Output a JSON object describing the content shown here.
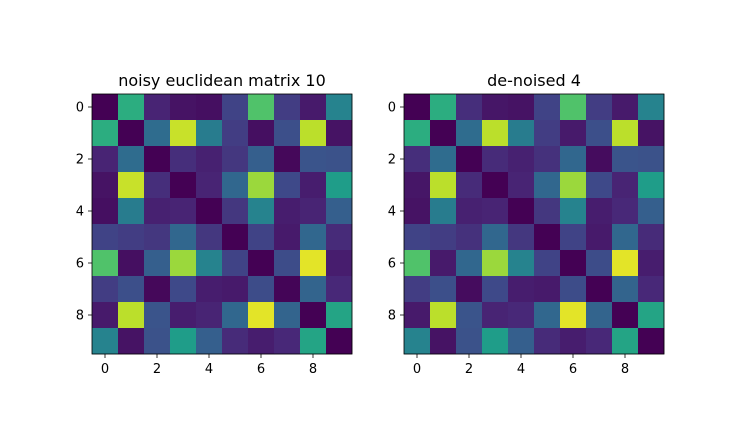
{
  "chart_data": [
    {
      "type": "heatmap",
      "title": "noisy euclidean matrix 10",
      "colormap": "viridis",
      "x_ticks": [
        "0",
        "2",
        "4",
        "6",
        "8"
      ],
      "y_ticks": [
        "0",
        "2",
        "4",
        "6",
        "8"
      ],
      "matrix": [
        [
          0.0,
          0.62,
          0.1,
          0.05,
          0.04,
          0.2,
          0.72,
          0.18,
          0.07,
          0.45
        ],
        [
          0.62,
          0.0,
          0.35,
          0.92,
          0.42,
          0.18,
          0.04,
          0.24,
          0.9,
          0.05
        ],
        [
          0.1,
          0.35,
          0.0,
          0.13,
          0.09,
          0.16,
          0.3,
          0.02,
          0.26,
          0.25
        ],
        [
          0.05,
          0.92,
          0.13,
          0.0,
          0.1,
          0.33,
          0.85,
          0.22,
          0.08,
          0.55
        ],
        [
          0.04,
          0.42,
          0.09,
          0.1,
          0.0,
          0.16,
          0.45,
          0.08,
          0.1,
          0.3
        ],
        [
          0.2,
          0.18,
          0.16,
          0.33,
          0.16,
          0.0,
          0.2,
          0.07,
          0.33,
          0.12
        ],
        [
          0.72,
          0.04,
          0.3,
          0.85,
          0.45,
          0.2,
          0.0,
          0.23,
          0.96,
          0.08
        ],
        [
          0.18,
          0.24,
          0.02,
          0.22,
          0.08,
          0.07,
          0.23,
          0.01,
          0.32,
          0.11
        ],
        [
          0.07,
          0.9,
          0.26,
          0.08,
          0.1,
          0.33,
          0.96,
          0.32,
          0.0,
          0.58
        ],
        [
          0.45,
          0.05,
          0.25,
          0.55,
          0.3,
          0.12,
          0.08,
          0.11,
          0.58,
          0.0
        ]
      ]
    },
    {
      "type": "heatmap",
      "title": "de-noised 4",
      "colormap": "viridis",
      "x_ticks": [
        "0",
        "2",
        "4",
        "6",
        "8"
      ],
      "y_ticks": [
        "0",
        "2",
        "4",
        "6",
        "8"
      ],
      "matrix": [
        [
          0.0,
          0.62,
          0.13,
          0.06,
          0.05,
          0.2,
          0.72,
          0.18,
          0.07,
          0.45
        ],
        [
          0.62,
          0.0,
          0.35,
          0.9,
          0.42,
          0.18,
          0.07,
          0.24,
          0.9,
          0.05
        ],
        [
          0.13,
          0.35,
          0.0,
          0.12,
          0.09,
          0.14,
          0.33,
          0.03,
          0.26,
          0.25
        ],
        [
          0.06,
          0.9,
          0.12,
          0.0,
          0.1,
          0.33,
          0.85,
          0.22,
          0.1,
          0.55
        ],
        [
          0.05,
          0.42,
          0.09,
          0.1,
          0.0,
          0.16,
          0.45,
          0.08,
          0.11,
          0.3
        ],
        [
          0.2,
          0.18,
          0.14,
          0.33,
          0.16,
          0.0,
          0.2,
          0.07,
          0.33,
          0.12
        ],
        [
          0.72,
          0.07,
          0.33,
          0.85,
          0.45,
          0.2,
          0.0,
          0.23,
          0.96,
          0.08
        ],
        [
          0.18,
          0.24,
          0.03,
          0.22,
          0.08,
          0.07,
          0.23,
          0.0,
          0.32,
          0.11
        ],
        [
          0.07,
          0.9,
          0.26,
          0.1,
          0.11,
          0.33,
          0.96,
          0.32,
          0.0,
          0.58
        ],
        [
          0.45,
          0.05,
          0.25,
          0.55,
          0.3,
          0.12,
          0.08,
          0.11,
          0.58,
          0.0
        ]
      ]
    }
  ]
}
